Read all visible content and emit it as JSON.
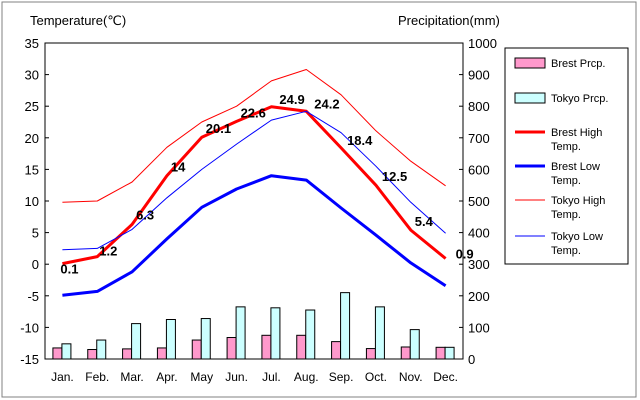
{
  "chart_data": {
    "type": "bar+line",
    "categories": [
      "Jan.",
      "Feb.",
      "Mar.",
      "Apr.",
      "May",
      "Jun.",
      "Jul.",
      "Aug.",
      "Sep.",
      "Oct.",
      "Nov.",
      "Dec."
    ],
    "y_left": {
      "label": "Temperature(℃)",
      "min": -15,
      "max": 35,
      "ticks": [
        35,
        30,
        25,
        20,
        15,
        10,
        5,
        0,
        -5,
        -10,
        -15
      ]
    },
    "y_right": {
      "label": "Precipitation(mm)",
      "min": 0,
      "max": 1000,
      "ticks": [
        1000,
        900,
        800,
        700,
        600,
        500,
        400,
        300,
        200,
        100,
        0
      ]
    },
    "bars": [
      {
        "name": "Brest Prcp.",
        "color": "#ff99cc",
        "values": [
          35,
          30,
          32,
          35,
          60,
          68,
          75,
          75,
          55,
          33,
          38,
          37
        ]
      },
      {
        "name": "Tokyo Prcp.",
        "color": "#ccffff",
        "values": [
          48,
          60,
          112,
          125,
          128,
          165,
          162,
          155,
          210,
          165,
          93,
          37
        ]
      }
    ],
    "lines": [
      {
        "name": "Brest High Temp.",
        "color": "#ff0000",
        "width": 3,
        "values": [
          0.1,
          1.2,
          6.3,
          14,
          20.1,
          22.6,
          24.9,
          24.2,
          18.4,
          12.5,
          5.4,
          0.9
        ]
      },
      {
        "name": "Brest Low Temp.",
        "color": "#0000ff",
        "width": 3,
        "values": [
          -4.9,
          -4.3,
          -1.2,
          4,
          9,
          11.9,
          14,
          13.3,
          8.9,
          4.6,
          0.2,
          -3.4
        ]
      },
      {
        "name": "Tokyo High Temp.",
        "color": "#ff0000",
        "width": 1,
        "values": [
          9.8,
          10,
          13,
          18.5,
          22.5,
          25,
          29,
          30.8,
          26.8,
          21.1,
          16.3,
          12.4
        ]
      },
      {
        "name": "Tokyo Low Temp.",
        "color": "#0000ff",
        "width": 1,
        "values": [
          2.3,
          2.5,
          5.5,
          10.5,
          15,
          19,
          22.8,
          24.2,
          20.8,
          15.5,
          9.8,
          4.9
        ]
      }
    ],
    "data_labels": [
      "0.1",
      "1.2",
      "6.3",
      "14",
      "20.1",
      "22.6",
      "24.9",
      "24.2",
      "18.4",
      "12.5",
      "5.4",
      "0.9"
    ],
    "legend": {
      "position": "right",
      "items": [
        {
          "label": "Brest Prcp.",
          "kind": "bar",
          "fill": "#ff99cc"
        },
        {
          "label": "Tokyo Prcp.",
          "kind": "bar",
          "fill": "#ccffff"
        },
        {
          "label": "Brest High Temp.",
          "kind": "line",
          "color": "#ff0000",
          "width": 3
        },
        {
          "label": "Brest Low Temp.",
          "kind": "line",
          "color": "#0000ff",
          "width": 3
        },
        {
          "label": "Tokyo High Temp.",
          "kind": "line",
          "color": "#ff0000",
          "width": 1
        },
        {
          "label": "Tokyo Low Temp.",
          "kind": "line",
          "color": "#0000ff",
          "width": 1
        }
      ]
    },
    "grid": false
  }
}
